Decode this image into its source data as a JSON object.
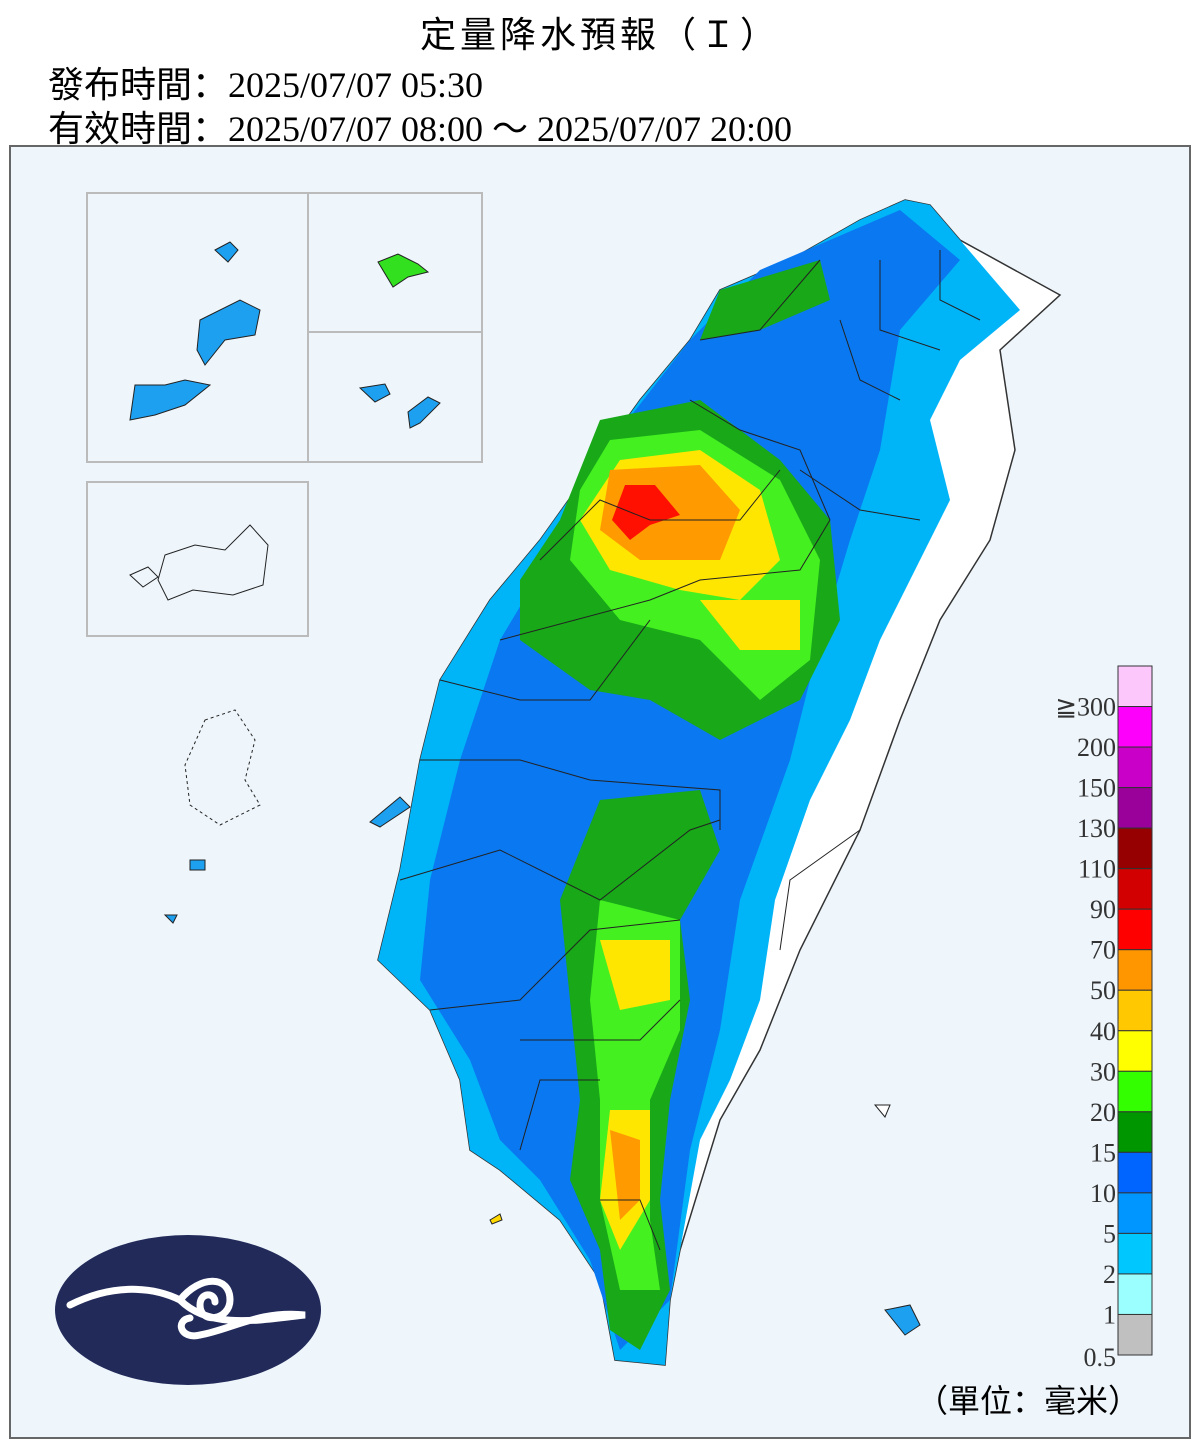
{
  "header": {
    "title": "定量降水預報（Ｉ）",
    "issued": "發布時間：2025/07/07 05:30",
    "valid": "有效時間：2025/07/07 08:00 ～ 2025/07/07 20:00"
  },
  "legend": {
    "items": [
      {
        "label": null,
        "color": "#fcc8fc"
      },
      {
        "label": "≧300",
        "color": "#fc00fc"
      },
      {
        "label": "200",
        "color": "#c800c8"
      },
      {
        "label": "150",
        "color": "#9a009a"
      },
      {
        "label": "130",
        "color": "#960000"
      },
      {
        "label": "110",
        "color": "#d20000"
      },
      {
        "label": "90",
        "color": "#ff0000"
      },
      {
        "label": "70",
        "color": "#ff9600"
      },
      {
        "label": "50",
        "color": "#ffc800"
      },
      {
        "label": "40",
        "color": "#ffff00"
      },
      {
        "label": "30",
        "color": "#33ff00"
      },
      {
        "label": "20",
        "color": "#009600"
      },
      {
        "label": "15",
        "color": "#0064ff"
      },
      {
        "label": "10",
        "color": "#0096ff"
      },
      {
        "label": "5",
        "color": "#00c8ff"
      },
      {
        "label": "2",
        "color": "#9bffff"
      },
      {
        "label": "1",
        "color": "#c0c0c0"
      }
    ],
    "bottom_label": "0.5",
    "unit": "（單位：毫米）"
  }
}
